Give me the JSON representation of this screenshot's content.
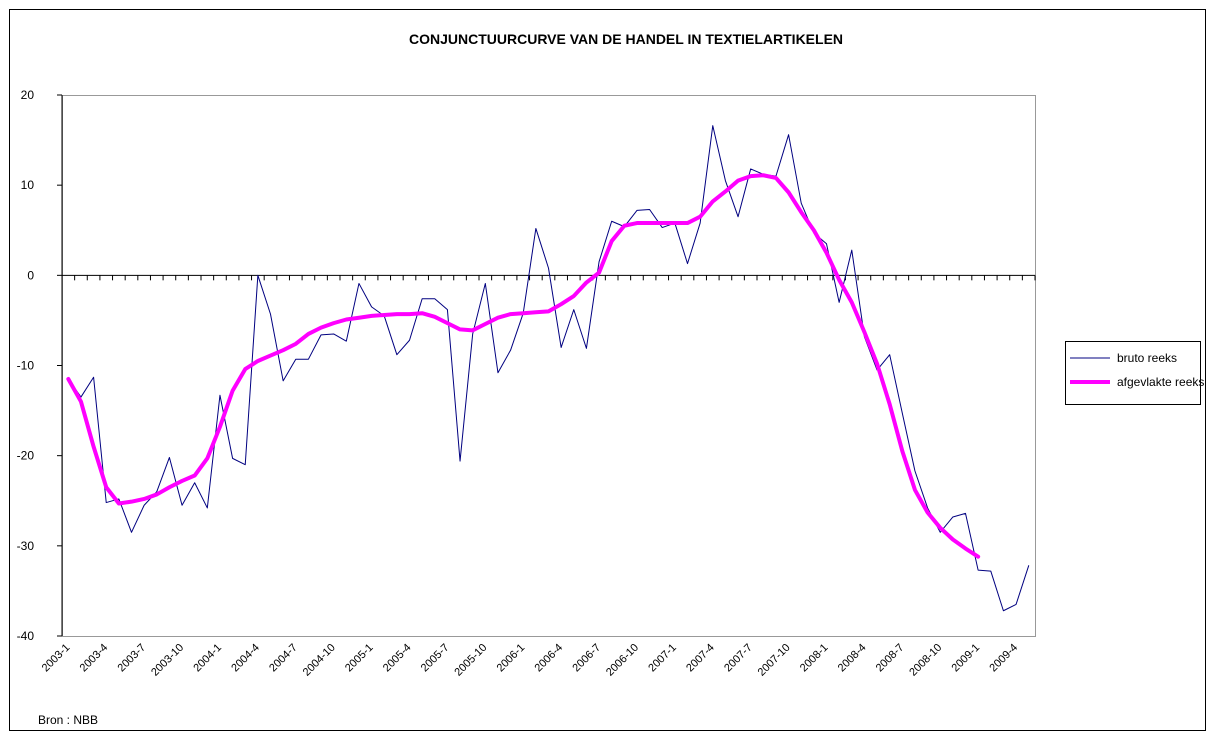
{
  "chart_data": {
    "type": "line",
    "title": "CONJUNCTUURCURVE VAN DE HANDEL IN TEXTIELARTIKELEN",
    "source": "Bron : NBB",
    "categories": [
      "2003-1",
      null,
      null,
      "2003-4",
      null,
      null,
      "2003-7",
      null,
      null,
      "2003-10",
      null,
      null,
      "2004-1",
      null,
      null,
      "2004-4",
      null,
      null,
      "2004-7",
      null,
      null,
      "2004-10",
      null,
      null,
      "2005-1",
      null,
      null,
      "2005-4",
      null,
      null,
      "2005-7",
      null,
      null,
      "2005-10",
      null,
      null,
      "2006-1",
      null,
      null,
      "2006-4",
      null,
      null,
      "2006-7",
      null,
      null,
      "2006-10",
      null,
      null,
      "2007-1",
      null,
      null,
      "2007-4",
      null,
      null,
      "2007-7",
      null,
      null,
      "2007-10",
      null,
      null,
      "2008-1",
      null,
      null,
      "2008-4",
      null,
      null,
      "2008-7",
      null,
      null,
      "2008-10",
      null,
      null,
      "2009-1",
      null,
      null,
      "2009-4",
      null
    ],
    "series": [
      {
        "name": "bruto reeks",
        "color": "#000080",
        "width": 1,
        "values": [
          -11.5,
          -13.5,
          -11.3,
          -25.2,
          -24.8,
          -28.5,
          -25.5,
          -24,
          -20.2,
          -25.5,
          -23,
          -25.8,
          -13.3,
          -20.3,
          -21,
          0,
          -4.3,
          -11.7,
          -9.3,
          -9.3,
          -6.6,
          -6.5,
          -7.3,
          -0.9,
          -3.5,
          -4.5,
          -8.8,
          -7.2,
          -2.6,
          -2.6,
          -3.8,
          -20.6,
          -6.5,
          -0.9,
          -10.8,
          -8.3,
          -4.2,
          5.2,
          0.8,
          -8,
          -3.8,
          -8.1,
          1.5,
          6,
          5.4,
          7.2,
          7.3,
          5.3,
          5.8,
          1.3,
          5.8,
          16.6,
          10.5,
          6.5,
          11.8,
          11.2,
          11,
          15.6,
          8,
          4.7,
          3.5,
          -3,
          2.8,
          -6.8,
          -10.5,
          -8.8,
          -15.3,
          -21.7,
          -25.8,
          -28.5,
          -26.8,
          -26.4,
          -32.7,
          -32.8,
          -37.2,
          -36.5,
          -32.2
        ]
      },
      {
        "name": "afgevlakte reeks",
        "color": "#ff00ff",
        "width": 4,
        "values": [
          -11.5,
          -14,
          -19,
          -23.5,
          -25.3,
          -25.1,
          -24.8,
          -24.3,
          -23.5,
          -22.8,
          -22.2,
          -20.3,
          -16.8,
          -12.8,
          -10.4,
          -9.5,
          -8.9,
          -8.3,
          -7.6,
          -6.5,
          -5.8,
          -5.3,
          -4.9,
          -4.7,
          -4.5,
          -4.4,
          -4.3,
          -4.3,
          -4.2,
          -4.6,
          -5.3,
          -6,
          -6.1,
          -5.4,
          -4.7,
          -4.3,
          -4.2,
          -4.1,
          -4,
          -3.2,
          -2.3,
          -0.8,
          0.3,
          3.8,
          5.5,
          5.8,
          5.8,
          5.8,
          5.8,
          5.8,
          6.5,
          8.2,
          9.3,
          10.5,
          11,
          11.1,
          10.8,
          9.2,
          7,
          5,
          2.5,
          -0.5,
          -3,
          -6.3,
          -9.8,
          -14.3,
          -19.5,
          -23.8,
          -26.3,
          -28,
          -29.3,
          -30.3,
          -31.2,
          null,
          null,
          null,
          null
        ]
      }
    ],
    "ylim": [
      -40,
      20
    ],
    "yticks": [
      -40,
      -30,
      -20,
      -10,
      0,
      10,
      20
    ],
    "grid": false,
    "legend": "right"
  }
}
